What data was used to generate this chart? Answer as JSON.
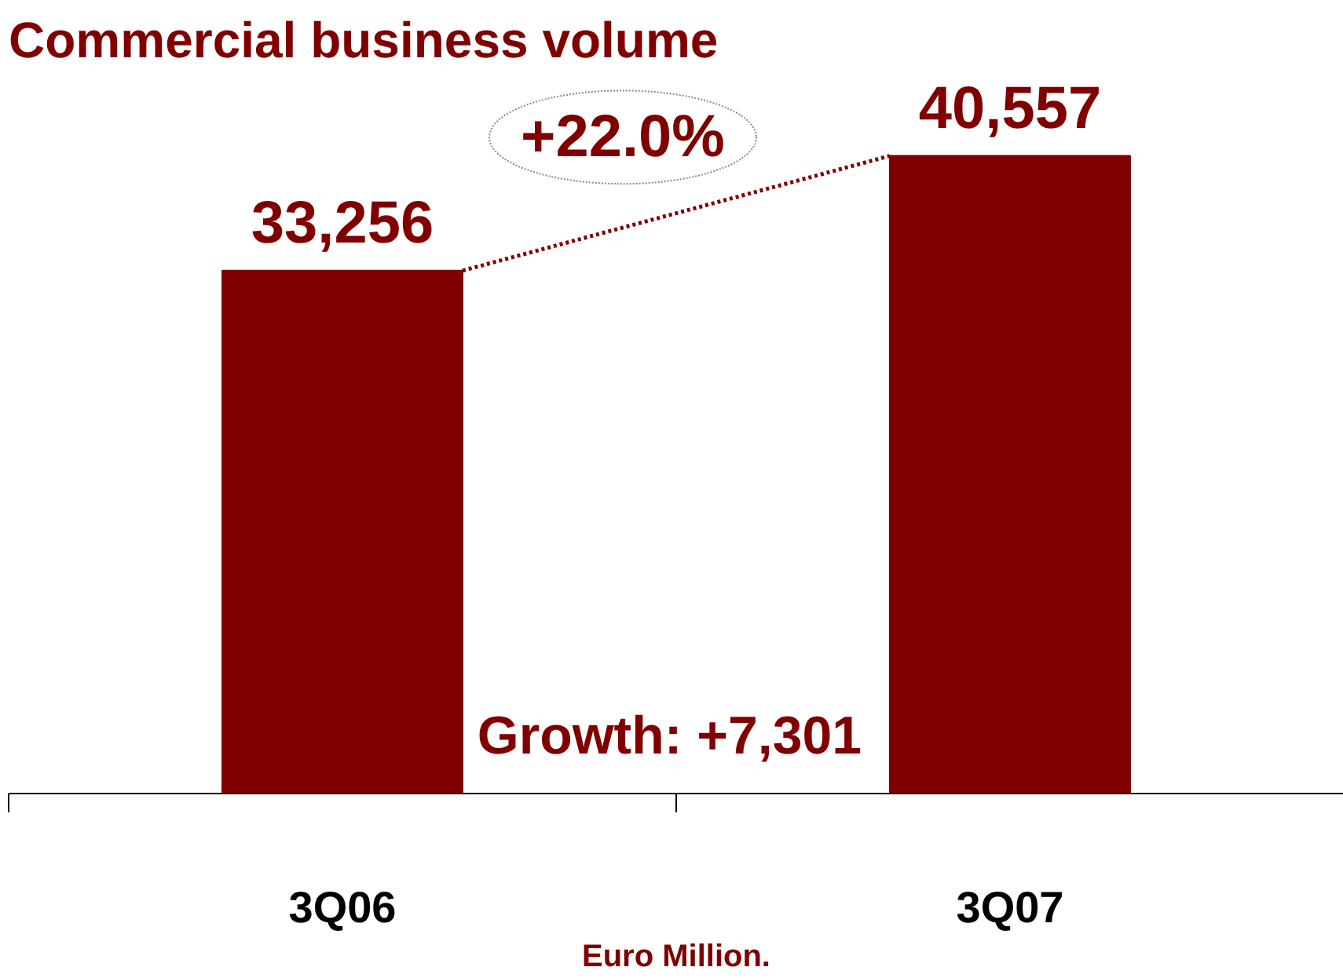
{
  "chart_data": {
    "type": "bar",
    "title": "Commercial business volume",
    "xlabel": "Euro Million.",
    "categories": [
      "3Q06",
      "3Q07"
    ],
    "values": [
      33256,
      40557
    ],
    "color": "#800000",
    "value_labels": [
      "33,256",
      "40,557"
    ],
    "grid": false,
    "annotations": [
      "+22.0%",
      "Growth: +7,301"
    ]
  }
}
